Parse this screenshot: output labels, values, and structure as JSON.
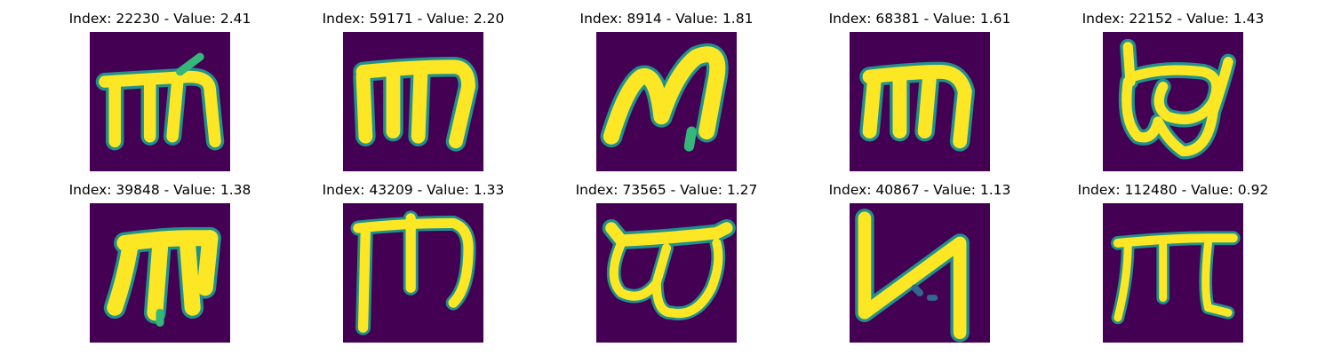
{
  "colors": {
    "background": "#440154",
    "mid_low": "#31688e",
    "mid": "#21918c",
    "mid_high": "#35b779",
    "foreground": "#fde725"
  },
  "panels": [
    {
      "title": "Index: 22230 - Value: 2.41",
      "glyph": "m"
    },
    {
      "title": "Index: 59171 - Value: 2.20",
      "glyph": "m"
    },
    {
      "title": "Index: 8914 - Value: 1.81",
      "glyph": "M"
    },
    {
      "title": "Index: 68381 - Value: 1.61",
      "glyph": "m"
    },
    {
      "title": "Index: 22152 - Value: 1.43",
      "glyph": "w-loop"
    },
    {
      "title": "Index: 39848 - Value: 1.38",
      "glyph": "m"
    },
    {
      "title": "Index: 43209 - Value: 1.33",
      "glyph": "m-tall"
    },
    {
      "title": "Index: 73565 - Value: 1.27",
      "glyph": "w-loop"
    },
    {
      "title": "Index: 40867 - Value: 1.13",
      "glyph": "N"
    },
    {
      "title": "Index: 112480 - Value: 0.92",
      "glyph": "m-thin"
    }
  ]
}
